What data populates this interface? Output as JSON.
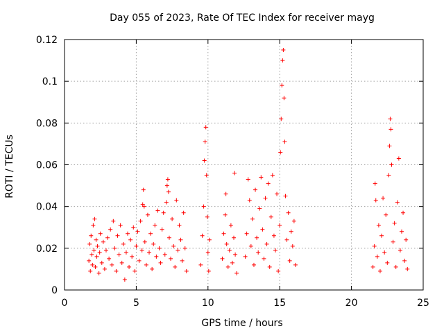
{
  "chart_data": {
    "type": "scatter",
    "title": "Day 055 of 2023, Rate Of TEC Index for receiver mayg",
    "xlabel": "GPS time / hours",
    "ylabel": "ROTI / TECUs",
    "xlim": [
      0,
      25
    ],
    "ylim": [
      0,
      0.12
    ],
    "xticks": [
      0,
      5,
      10,
      15,
      20,
      25
    ],
    "xtick_labels": [
      "0",
      "5",
      "10",
      "15",
      "20",
      "25"
    ],
    "yticks": [
      0,
      0.02,
      0.04,
      0.06,
      0.08,
      0.1,
      0.12
    ],
    "ytick_labels": [
      "0",
      "0.02",
      "0.04",
      "0.06",
      "0.08",
      "0.1",
      "0.12"
    ],
    "grid": true,
    "marker": "plus",
    "color": "#ff0000",
    "series": [
      {
        "points": [
          [
            1.7,
            0.014
          ],
          [
            1.75,
            0.022
          ],
          [
            1.8,
            0.009
          ],
          [
            1.85,
            0.026
          ],
          [
            1.9,
            0.017
          ],
          [
            1.95,
            0.012
          ],
          [
            2.0,
            0.031
          ],
          [
            2.05,
            0.019
          ],
          [
            2.1,
            0.034
          ],
          [
            2.15,
            0.011
          ],
          [
            2.2,
            0.024
          ],
          [
            2.25,
            0.016
          ],
          [
            2.3,
            0.021
          ],
          [
            2.4,
            0.008
          ],
          [
            2.45,
            0.018
          ],
          [
            2.5,
            0.027
          ],
          [
            2.6,
            0.013
          ],
          [
            2.7,
            0.023
          ],
          [
            2.8,
            0.01
          ],
          [
            2.9,
            0.019
          ],
          [
            3.0,
            0.025
          ],
          [
            3.1,
            0.015
          ],
          [
            3.2,
            0.029
          ],
          [
            3.3,
            0.012
          ],
          [
            3.4,
            0.033
          ],
          [
            3.5,
            0.02
          ],
          [
            3.6,
            0.009
          ],
          [
            3.7,
            0.026
          ],
          [
            3.8,
            0.017
          ],
          [
            3.9,
            0.031
          ],
          [
            4.0,
            0.013
          ],
          [
            4.1,
            0.022
          ],
          [
            4.2,
            0.005
          ],
          [
            4.3,
            0.018
          ],
          [
            4.4,
            0.027
          ],
          [
            4.5,
            0.011
          ],
          [
            4.6,
            0.024
          ],
          [
            4.7,
            0.016
          ],
          [
            4.8,
            0.03
          ],
          [
            4.9,
            0.009
          ],
          [
            5.0,
            0.021
          ],
          [
            5.1,
            0.028
          ],
          [
            5.2,
            0.014
          ],
          [
            5.3,
            0.033
          ],
          [
            5.4,
            0.019
          ],
          [
            5.45,
            0.041
          ],
          [
            5.5,
            0.048
          ],
          [
            5.55,
            0.04
          ],
          [
            5.6,
            0.023
          ],
          [
            5.7,
            0.012
          ],
          [
            5.8,
            0.036
          ],
          [
            5.9,
            0.018
          ],
          [
            6.0,
            0.027
          ],
          [
            6.1,
            0.01
          ],
          [
            6.2,
            0.022
          ],
          [
            6.3,
            0.031
          ],
          [
            6.4,
            0.016
          ],
          [
            6.5,
            0.038
          ],
          [
            6.6,
            0.02
          ],
          [
            6.7,
            0.013
          ],
          [
            6.8,
            0.029
          ],
          [
            6.9,
            0.037
          ],
          [
            7.0,
            0.017
          ],
          [
            7.1,
            0.042
          ],
          [
            7.15,
            0.05
          ],
          [
            7.2,
            0.053
          ],
          [
            7.25,
            0.047
          ],
          [
            7.3,
            0.025
          ],
          [
            7.4,
            0.015
          ],
          [
            7.5,
            0.034
          ],
          [
            7.6,
            0.021
          ],
          [
            7.7,
            0.011
          ],
          [
            7.8,
            0.043
          ],
          [
            7.9,
            0.019
          ],
          [
            8.0,
            0.031
          ],
          [
            8.1,
            0.024
          ],
          [
            8.2,
            0.014
          ],
          [
            8.3,
            0.037
          ],
          [
            8.4,
            0.02
          ],
          [
            8.5,
            0.009
          ],
          [
            9.5,
            0.012
          ],
          [
            9.6,
            0.026
          ],
          [
            9.7,
            0.04
          ],
          [
            9.75,
            0.062
          ],
          [
            9.8,
            0.071
          ],
          [
            9.85,
            0.078
          ],
          [
            9.9,
            0.055
          ],
          [
            9.95,
            0.035
          ],
          [
            10.0,
            0.018
          ],
          [
            10.05,
            0.009
          ],
          [
            10.1,
            0.024
          ],
          [
            11.0,
            0.015
          ],
          [
            11.1,
            0.027
          ],
          [
            11.2,
            0.036
          ],
          [
            11.25,
            0.046
          ],
          [
            11.3,
            0.022
          ],
          [
            11.4,
            0.011
          ],
          [
            11.5,
            0.019
          ],
          [
            11.6,
            0.031
          ],
          [
            11.7,
            0.013
          ],
          [
            11.8,
            0.025
          ],
          [
            11.85,
            0.056
          ],
          [
            11.9,
            0.017
          ],
          [
            12.0,
            0.008
          ],
          [
            12.6,
            0.016
          ],
          [
            12.7,
            0.027
          ],
          [
            12.8,
            0.053
          ],
          [
            12.9,
            0.043
          ],
          [
            13.0,
            0.021
          ],
          [
            13.1,
            0.034
          ],
          [
            13.2,
            0.012
          ],
          [
            13.3,
            0.048
          ],
          [
            13.4,
            0.025
          ],
          [
            13.5,
            0.018
          ],
          [
            13.6,
            0.039
          ],
          [
            13.7,
            0.054
          ],
          [
            13.8,
            0.029
          ],
          [
            13.9,
            0.015
          ],
          [
            14.0,
            0.044
          ],
          [
            14.1,
            0.022
          ],
          [
            14.2,
            0.051
          ],
          [
            14.3,
            0.011
          ],
          [
            14.4,
            0.035
          ],
          [
            14.5,
            0.055
          ],
          [
            14.6,
            0.026
          ],
          [
            14.7,
            0.019
          ],
          [
            14.8,
            0.046
          ],
          [
            14.9,
            0.009
          ],
          [
            15.0,
            0.031
          ],
          [
            15.05,
            0.066
          ],
          [
            15.1,
            0.082
          ],
          [
            15.15,
            0.098
          ],
          [
            15.2,
            0.11
          ],
          [
            15.25,
            0.115
          ],
          [
            15.3,
            0.092
          ],
          [
            15.35,
            0.071
          ],
          [
            15.4,
            0.045
          ],
          [
            15.5,
            0.024
          ],
          [
            15.6,
            0.037
          ],
          [
            15.7,
            0.014
          ],
          [
            15.8,
            0.028
          ],
          [
            15.9,
            0.021
          ],
          [
            16.0,
            0.033
          ],
          [
            16.1,
            0.012
          ],
          [
            21.5,
            0.011
          ],
          [
            21.6,
            0.021
          ],
          [
            21.65,
            0.051
          ],
          [
            21.7,
            0.043
          ],
          [
            21.8,
            0.016
          ],
          [
            21.9,
            0.031
          ],
          [
            22.0,
            0.009
          ],
          [
            22.1,
            0.026
          ],
          [
            22.2,
            0.044
          ],
          [
            22.3,
            0.018
          ],
          [
            22.4,
            0.036
          ],
          [
            22.5,
            0.013
          ],
          [
            22.6,
            0.055
          ],
          [
            22.65,
            0.069
          ],
          [
            22.7,
            0.082
          ],
          [
            22.75,
            0.077
          ],
          [
            22.8,
            0.06
          ],
          [
            22.9,
            0.023
          ],
          [
            23.0,
            0.032
          ],
          [
            23.1,
            0.011
          ],
          [
            23.2,
            0.042
          ],
          [
            23.3,
            0.063
          ],
          [
            23.4,
            0.019
          ],
          [
            23.5,
            0.028
          ],
          [
            23.6,
            0.037
          ],
          [
            23.7,
            0.014
          ],
          [
            23.8,
            0.024
          ],
          [
            23.9,
            0.01
          ]
        ]
      }
    ]
  }
}
